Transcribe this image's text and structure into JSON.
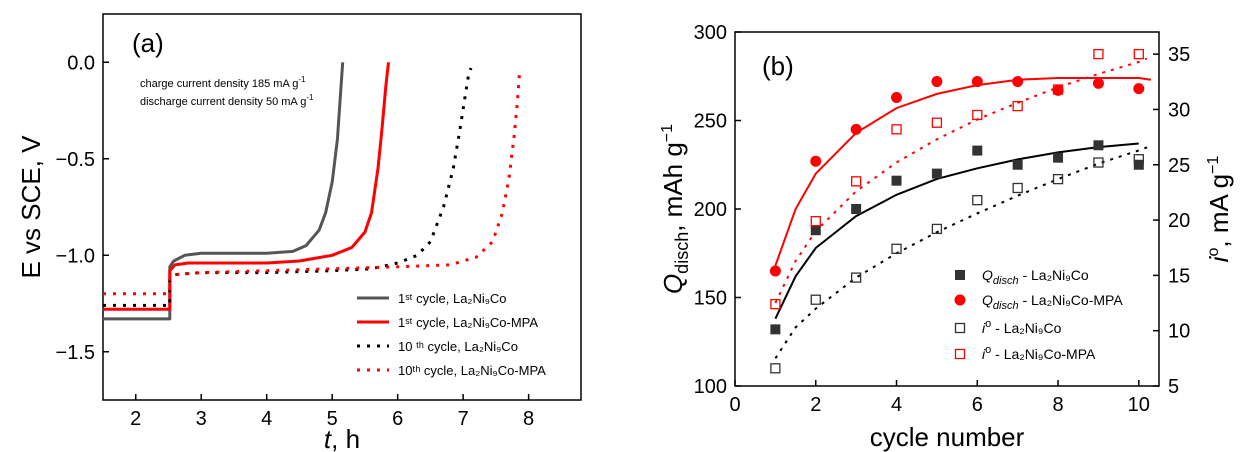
{
  "chart_data": [
    {
      "panel_label": "(a)",
      "type": "line",
      "xlabel_main": "t",
      "xlabel_unit": ", h",
      "ylabel": "E vs SCE, V",
      "xlim": [
        1.5,
        8.8
      ],
      "ylim": [
        -1.75,
        0.25
      ],
      "x_ticks": [
        2,
        3,
        4,
        5,
        6,
        7,
        8
      ],
      "y_ticks": [
        0.0,
        -0.5,
        -1.0,
        -1.5
      ],
      "y_tick_labels": [
        "0.0",
        "−0.5",
        "−1.0",
        "−1.5"
      ],
      "annotations": [
        "charge current density 185 mA g⁻¹",
        "discharge current density 50 mA g⁻¹"
      ],
      "legend_position": "bottom-right",
      "series": [
        {
          "name": "1st cycle, La2Ni9Co",
          "legend_label": "1ˢᵗ cycle, La₂Ni₉Co",
          "color": "#555555",
          "style": "solid",
          "x": [
            1.5,
            2.52,
            2.52,
            2.58,
            2.75,
            3.0,
            3.5,
            4.0,
            4.4,
            4.6,
            4.8,
            4.9,
            5.0,
            5.08,
            5.13,
            5.16
          ],
          "y": [
            -1.33,
            -1.33,
            -1.06,
            -1.03,
            -1.0,
            -0.99,
            -0.99,
            -0.99,
            -0.98,
            -0.95,
            -0.87,
            -0.78,
            -0.62,
            -0.4,
            -0.15,
            0.0
          ]
        },
        {
          "name": "1st cycle, La2Ni9Co-MPA",
          "legend_label": "1ˢᵗ cycle, La₂Ni₉Co-MPA",
          "color": "#ff0000",
          "style": "solid",
          "x": [
            1.5,
            2.52,
            2.52,
            2.6,
            2.8,
            3.0,
            3.5,
            4.0,
            4.5,
            5.0,
            5.3,
            5.5,
            5.6,
            5.7,
            5.76,
            5.82,
            5.86
          ],
          "y": [
            -1.28,
            -1.28,
            -1.08,
            -1.05,
            -1.04,
            -1.04,
            -1.04,
            -1.04,
            -1.03,
            -1.0,
            -0.96,
            -0.88,
            -0.78,
            -0.55,
            -0.35,
            -0.12,
            0.0
          ]
        },
        {
          "name": "10th cycle, La2Ni9Co",
          "legend_label": "10 ᵗʰ cycle, La₂Ni₉Co",
          "color": "#000000",
          "style": "dotted",
          "x": [
            1.5,
            2.52,
            2.52,
            2.6,
            3.0,
            4.0,
            5.0,
            5.6,
            6.0,
            6.3,
            6.5,
            6.7,
            6.85,
            6.95,
            7.02,
            7.08,
            7.12
          ],
          "y": [
            -1.26,
            -1.26,
            -1.13,
            -1.1,
            -1.09,
            -1.09,
            -1.08,
            -1.07,
            -1.04,
            -1.0,
            -0.93,
            -0.75,
            -0.55,
            -0.35,
            -0.2,
            -0.07,
            -0.03
          ]
        },
        {
          "name": "10th cycle, La2Ni9Co-MPA",
          "legend_label": "10ᵗʰ cycle, La₂Ni₉Co-MPA",
          "color": "#ff0000",
          "style": "dotted",
          "x": [
            1.5,
            2.52,
            2.52,
            2.6,
            3.0,
            4.0,
            5.0,
            6.0,
            6.8,
            7.2,
            7.45,
            7.6,
            7.7,
            7.78,
            7.83,
            7.86
          ],
          "y": [
            -1.2,
            -1.2,
            -1.12,
            -1.1,
            -1.09,
            -1.08,
            -1.07,
            -1.06,
            -1.05,
            -1.01,
            -0.93,
            -0.78,
            -0.6,
            -0.38,
            -0.2,
            -0.06
          ]
        }
      ]
    },
    {
      "panel_label": "(b)",
      "type": "scatter",
      "xlabel": "cycle number",
      "ylabel_left_main": "Q",
      "ylabel_left_sub": "disch",
      "ylabel_left_unit": ", mAh g",
      "ylabel_left_sup": "−1",
      "ylabel_right_main": "i",
      "ylabel_right_sup_o": "o",
      "ylabel_right_unit": ", mA g",
      "ylabel_right_sup": "−1",
      "xlim": [
        0,
        10.5
      ],
      "ylim_left": [
        100,
        300
      ],
      "ylim_right": [
        5,
        37
      ],
      "x_ticks": [
        0,
        2,
        4,
        6,
        8,
        10
      ],
      "y_ticks_left": [
        100,
        150,
        200,
        250,
        300
      ],
      "y_ticks_right": [
        5,
        10,
        15,
        20,
        25,
        30,
        35
      ],
      "legend_position": "bottom-right",
      "x": [
        1,
        2,
        3,
        4,
        5,
        6,
        7,
        8,
        9,
        10
      ],
      "series": [
        {
          "name": "Qdisch - La2Ni9Co",
          "legend_main": "Q",
          "legend_sub": "disch",
          "legend_rest": " - La₂Ni₉Co",
          "color": "#333333",
          "marker": "filled-square",
          "axis": "left",
          "values": [
            132,
            188,
            200,
            216,
            220,
            233,
            225,
            229,
            236,
            225
          ],
          "fit_style": "solid",
          "fit_color": "#000000",
          "fit": [
            [
              1.0,
              138
            ],
            [
              1.5,
              162
            ],
            [
              2.0,
              178
            ],
            [
              3.0,
              196
            ],
            [
              4.0,
              208
            ],
            [
              5.0,
              217
            ],
            [
              6.0,
              223
            ],
            [
              7.0,
              228
            ],
            [
              8.0,
              232
            ],
            [
              9.0,
              235
            ],
            [
              10.0,
              237
            ]
          ]
        },
        {
          "name": "Qdisch - La2Ni9Co-MPA",
          "legend_main": "Q",
          "legend_sub": "disch",
          "legend_rest": " - La₂Ni₉Co-MPA",
          "color": "#ff0000",
          "marker": "filled-circle",
          "axis": "left",
          "values": [
            165,
            227,
            245,
            263,
            272,
            272,
            272,
            267,
            271,
            268
          ],
          "fit_style": "solid",
          "fit_color": "#ff0000",
          "fit": [
            [
              1.0,
              168
            ],
            [
              1.5,
              200
            ],
            [
              2.0,
              220
            ],
            [
              3.0,
              243
            ],
            [
              4.0,
              257
            ],
            [
              5.0,
              265
            ],
            [
              6.0,
              270
            ],
            [
              7.0,
              273
            ],
            [
              8.0,
              274
            ],
            [
              9.0,
              274
            ],
            [
              10.0,
              274
            ],
            [
              10.3,
              273
            ]
          ]
        },
        {
          "name": "io - La2Ni9Co",
          "legend_main": "i",
          "legend_sup": "o",
          "legend_rest": " - La₂Ni₉Co",
          "color": "#333333",
          "marker": "open-square",
          "axis": "right",
          "values": [
            6.6,
            12.8,
            14.8,
            17.4,
            19.2,
            21.8,
            22.9,
            23.7,
            25.2,
            25.5
          ],
          "fit_style": "dotted",
          "fit_color": "#000000",
          "fit": [
            [
              1.0,
              7.5
            ],
            [
              1.5,
              10.3
            ],
            [
              2.0,
              12.0
            ],
            [
              3.0,
              14.8
            ],
            [
              4.0,
              17.0
            ],
            [
              5.0,
              18.9
            ],
            [
              6.0,
              20.6
            ],
            [
              7.0,
              22.2
            ],
            [
              8.0,
              23.7
            ],
            [
              9.0,
              25.1
            ],
            [
              10.0,
              26.3
            ],
            [
              10.3,
              26.7
            ]
          ]
        },
        {
          "name": "io - La2Ni9Co-MPA",
          "legend_main": "i",
          "legend_sup": "o",
          "legend_rest": " - La₂Ni₉Co-MPA",
          "color": "#ff0000",
          "marker": "open-square",
          "axis": "right",
          "values": [
            12.4,
            19.9,
            23.5,
            28.2,
            28.8,
            29.5,
            30.3,
            31.8,
            35.0,
            35.0
          ],
          "fit_style": "dotted",
          "fit_color": "#ff0000",
          "fit": [
            [
              1.0,
              12.5
            ],
            [
              1.5,
              16.3
            ],
            [
              2.0,
              19.0
            ],
            [
              3.0,
              22.6
            ],
            [
              4.0,
              25.2
            ],
            [
              5.0,
              27.3
            ],
            [
              6.0,
              29.1
            ],
            [
              7.0,
              30.6
            ],
            [
              8.0,
              32.0
            ],
            [
              9.0,
              33.2
            ],
            [
              10.0,
              34.3
            ],
            [
              10.2,
              34.6
            ]
          ]
        }
      ]
    }
  ]
}
